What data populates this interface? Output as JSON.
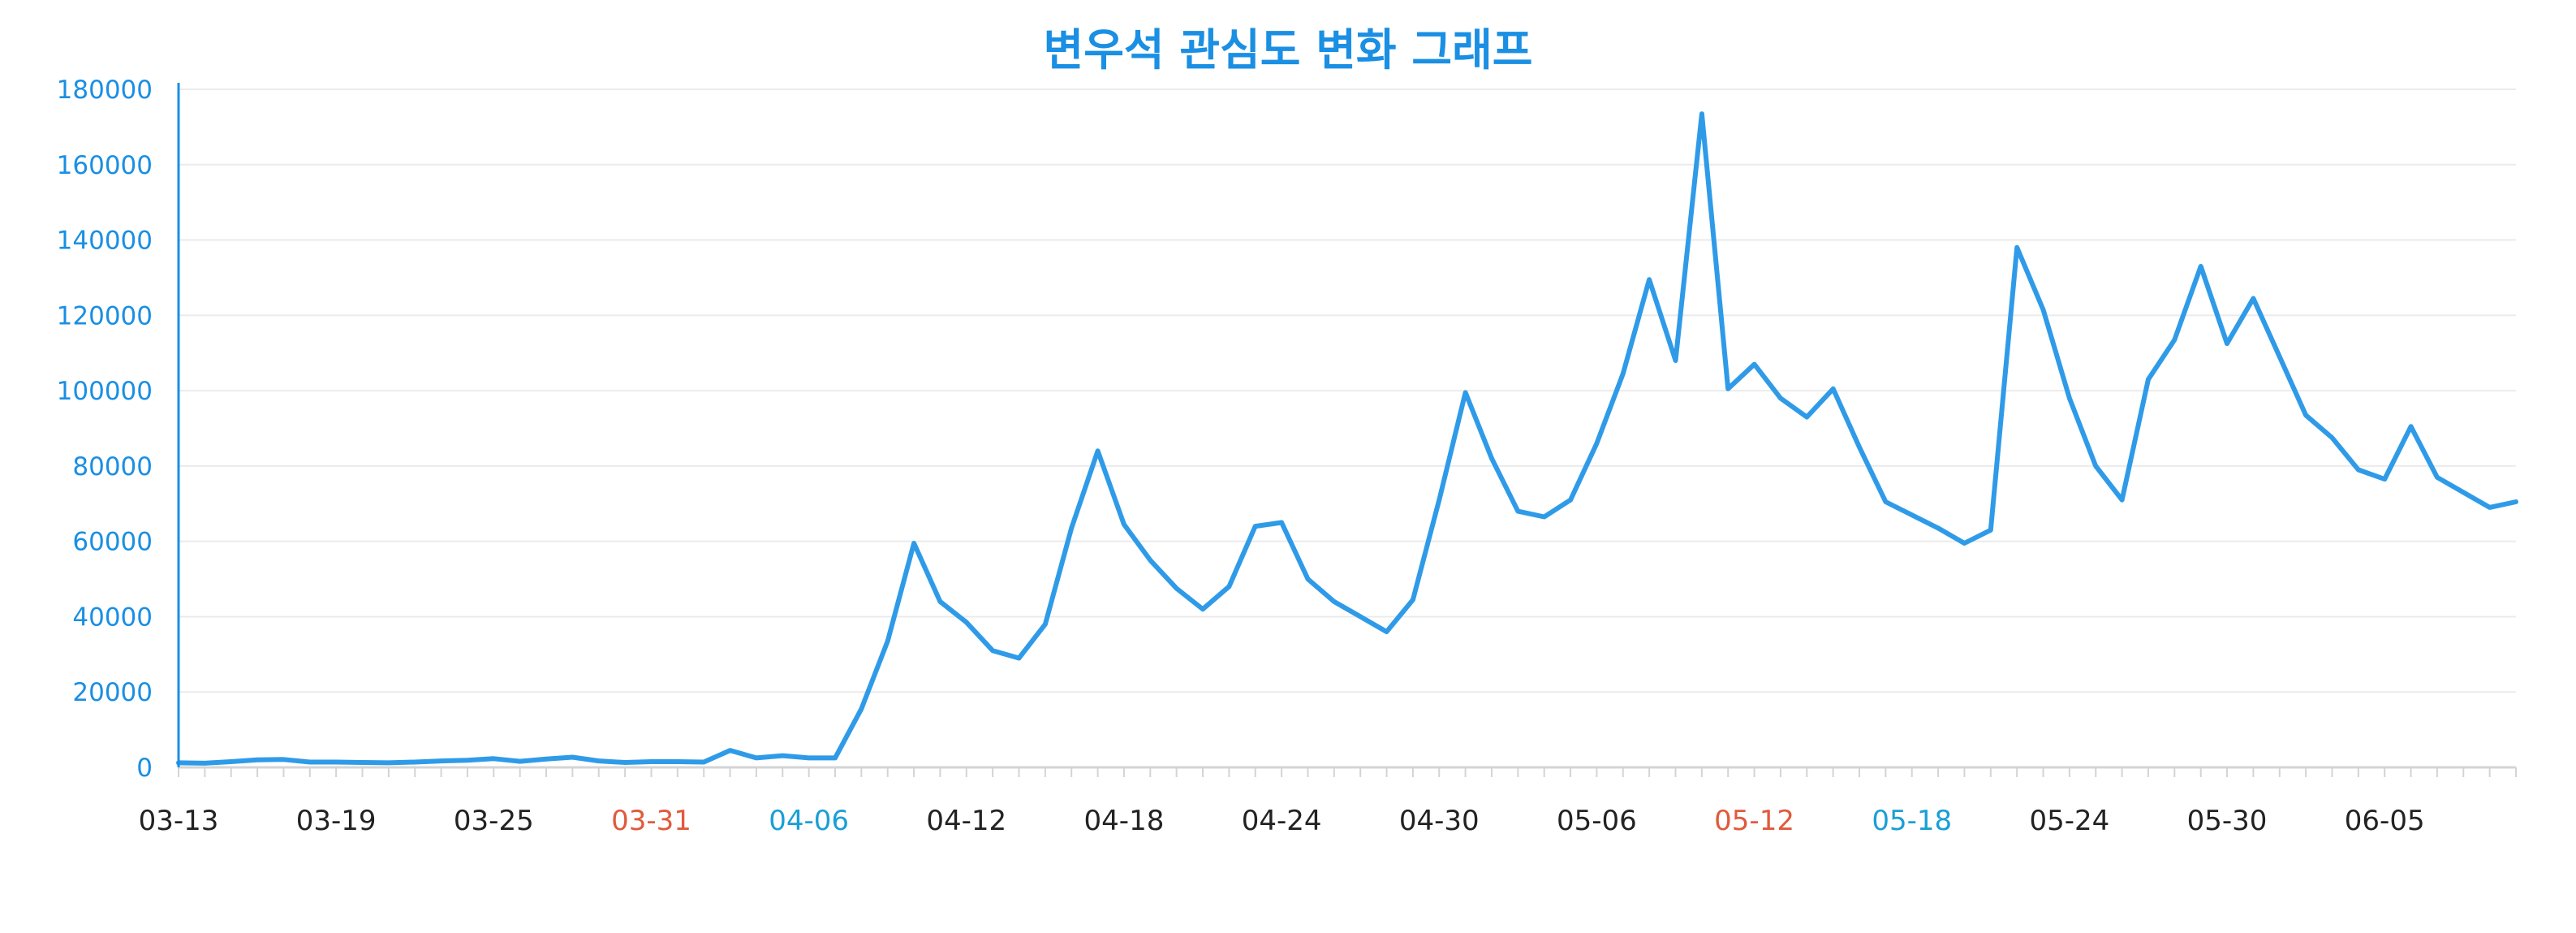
{
  "colors": {
    "title": "#1a8fe3",
    "line": "#2f9be8",
    "axis": "#1a8fe3",
    "ytick": "#1a8fe3",
    "xtick_default": "#222222",
    "xtick_saturday": "#1a9fd6",
    "xtick_sunday": "#e05a3c"
  },
  "chart_data": {
    "type": "line",
    "title": "변우석 관심도 변화 그래프",
    "xlabel": "",
    "ylabel": "",
    "ylim": [
      0,
      180000
    ],
    "yticks": [
      0,
      20000,
      40000,
      60000,
      80000,
      100000,
      120000,
      140000,
      160000,
      180000
    ],
    "grid": true,
    "legend": "none",
    "x_start": "03-13",
    "x_end": "06-10",
    "xtick_labels": [
      {
        "label": "03-13",
        "day_index": 0,
        "day_type": "weekday"
      },
      {
        "label": "03-19",
        "day_index": 6,
        "day_type": "weekday"
      },
      {
        "label": "03-25",
        "day_index": 12,
        "day_type": "weekday"
      },
      {
        "label": "03-31",
        "day_index": 18,
        "day_type": "sunday"
      },
      {
        "label": "04-06",
        "day_index": 24,
        "day_type": "saturday"
      },
      {
        "label": "04-12",
        "day_index": 30,
        "day_type": "weekday"
      },
      {
        "label": "04-18",
        "day_index": 36,
        "day_type": "weekday"
      },
      {
        "label": "04-24",
        "day_index": 42,
        "day_type": "weekday"
      },
      {
        "label": "04-30",
        "day_index": 48,
        "day_type": "weekday"
      },
      {
        "label": "05-06",
        "day_index": 54,
        "day_type": "weekday"
      },
      {
        "label": "05-12",
        "day_index": 60,
        "day_type": "sunday"
      },
      {
        "label": "05-18",
        "day_index": 66,
        "day_type": "saturday"
      },
      {
        "label": "05-24",
        "day_index": 72,
        "day_type": "weekday"
      },
      {
        "label": "05-30",
        "day_index": 78,
        "day_type": "weekday"
      },
      {
        "label": "06-05",
        "day_index": 84,
        "day_type": "weekday"
      }
    ],
    "series": [
      {
        "values": [
          1200,
          1100,
          1500,
          2000,
          2100,
          1400,
          1400,
          1300,
          1200,
          1400,
          1700,
          1900,
          2300,
          1600,
          2200,
          2700,
          1700,
          1300,
          1500,
          1500,
          1400,
          4500,
          2500,
          3100,
          2500,
          2500,
          15500,
          33500,
          59500,
          44000,
          38500,
          31000,
          29000,
          38000,
          63500,
          84000,
          64500,
          55000,
          47500,
          42000,
          48000,
          64000,
          65000,
          50000,
          44000,
          40000,
          36000,
          44500,
          71000,
          99500,
          82000,
          68000,
          66500,
          71000,
          86000,
          104500,
          129500,
          108000,
          173500,
          100500,
          107000,
          98000,
          93000,
          100500,
          85000,
          70500,
          67000,
          63500,
          59500,
          63000,
          138000,
          121500,
          98000,
          80000,
          71000,
          103000,
          113500,
          133000,
          112500,
          124500,
          109000,
          93500,
          87500,
          79000,
          76500,
          90500,
          77000,
          73000,
          69000,
          70500
        ]
      }
    ]
  }
}
